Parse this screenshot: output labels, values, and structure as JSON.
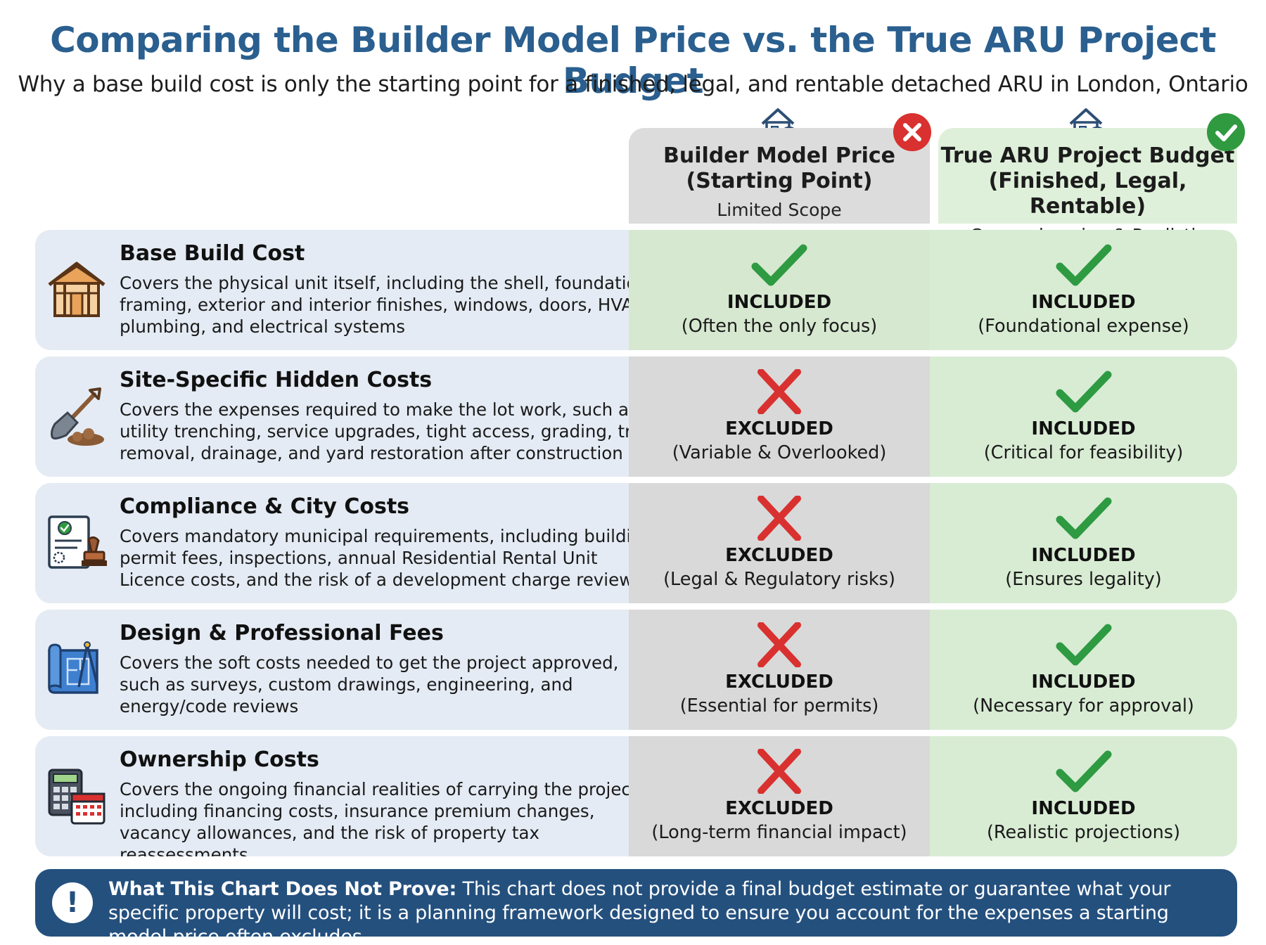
{
  "header": {
    "title": "Comparing the Builder Model Price vs. the True ARU Project Budget",
    "subtitle": "Why a base build cost is only the starting point for a finished, legal, and rentable detached ARU in London, Ontario"
  },
  "columns": [
    {
      "title_line1": "Builder Model Price",
      "title_line2": "(Starting Point)",
      "subtitle": "Limited Scope",
      "icon": "house-dollar-icon",
      "badge": "x-badge-icon"
    },
    {
      "title_line1": "True ARU Project Budget",
      "title_line2": "(Finished, Legal, Rentable)",
      "subtitle": "Comprehensive & Realistic",
      "icon": "house-check-icon",
      "badge": "check-badge-icon"
    }
  ],
  "rows": [
    {
      "title": "Base Build Cost",
      "description": "Covers the physical unit itself, including the shell, foundation, framing, exterior and interior finishes, windows, doors, HVAC, plumbing, and electrical systems",
      "icon": "house-frame-icon",
      "builder": {
        "status": "INCLUDED",
        "note": "(Often the only focus)"
      },
      "true_budget": {
        "status": "INCLUDED",
        "note": "(Foundational expense)"
      }
    },
    {
      "title": "Site-Specific Hidden Costs",
      "description": "Covers the expenses required to make the lot work, such as utility trenching, service upgrades, tight access, grading, tree removal, drainage, and yard restoration after construction",
      "icon": "shovel-icon",
      "builder": {
        "status": "EXCLUDED",
        "note": "(Variable & Overlooked)"
      },
      "true_budget": {
        "status": "INCLUDED",
        "note": "(Critical for feasibility)"
      }
    },
    {
      "title": "Compliance & City Costs",
      "description": "Covers mandatory municipal requirements, including building permit fees, inspections, annual Residential Rental Unit Licence costs, and the risk of a development charge review",
      "icon": "permit-stamp-icon",
      "builder": {
        "status": "EXCLUDED",
        "note": "(Legal & Regulatory risks)"
      },
      "true_budget": {
        "status": "INCLUDED",
        "note": "(Ensures legality)"
      }
    },
    {
      "title": "Design & Professional Fees",
      "description": "Covers the soft costs needed to get the project approved, such as surveys, custom drawings, engineering, and energy/code reviews",
      "icon": "blueprint-icon",
      "builder": {
        "status": "EXCLUDED",
        "note": "(Essential for permits)"
      },
      "true_budget": {
        "status": "INCLUDED",
        "note": "(Necessary for approval)"
      }
    },
    {
      "title": "Ownership Costs",
      "description": "Covers the ongoing financial realities of carrying the project, including financing costs, insurance premium changes, vacancy allowances, and the risk of property tax reassessments",
      "icon": "calculator-calendar-icon",
      "builder": {
        "status": "EXCLUDED",
        "note": "(Long-term financial impact)"
      },
      "true_budget": {
        "status": "INCLUDED",
        "note": "(Realistic projections)"
      }
    }
  ],
  "footer": {
    "label": "What This Chart Does Not Prove:",
    "text": " This chart does not provide a final budget estimate or guarantee what your specific property will cost; it is a planning framework designed to ensure you account for the expenses a starting model price often excludes",
    "icon": "exclamation-icon"
  },
  "colors": {
    "title": "#2a5f8f",
    "check": "#2e9a42",
    "cross": "#d9312f",
    "footer_bg": "#24507e"
  }
}
